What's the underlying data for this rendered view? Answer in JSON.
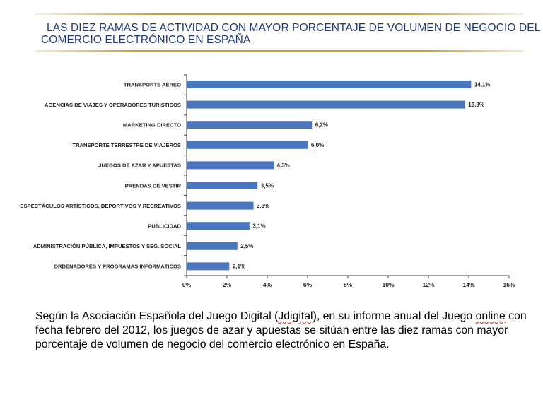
{
  "title": {
    "line1": "LAS DIEZ RAMAS DE ACTIVIDAD CON MAYOR PORCENTAJE DE VOLUMEN DE NEGOCIO DEL",
    "line2": "COMERCIO ELECTRÓNICO EN ESPAÑA"
  },
  "chart_data": {
    "type": "bar",
    "orientation": "horizontal",
    "categories": [
      "TRANSPORTE AÉREO",
      "AGENCIAS DE VIAJES Y OPERADORES TURÍSTICOS",
      "MARKETING DIRECTO",
      "TRANSPORTE TERRESTRE  DE VIAJEROS",
      "JUEGOS DE AZAR Y APUESTAS",
      "PRENDAS DE VESTIR",
      "ESPECTÁCULOS ARTÍSTICOS, DEPORTIVOS Y RECREATIVOS",
      "PUBLICIDAD",
      "ADMINISTRACIÓN PÚBLICA, IMPUESTOS Y SEG. SOCIAL",
      "ORDENADORES Y PROGRAMAS INFORMÁTICOS"
    ],
    "values": [
      14.1,
      13.8,
      6.2,
      6.0,
      4.3,
      3.5,
      3.3,
      3.1,
      2.5,
      2.1
    ],
    "data_labels": [
      "14,1%",
      "13,8%",
      "6,2%",
      "6,0%",
      "4,3%",
      "3,5%",
      "3,3%",
      "3,1%",
      "2,5%",
      "2,1%"
    ],
    "x_ticks": [
      "0%",
      "2%",
      "4%",
      "6%",
      "8%",
      "10%",
      "12%",
      "14%",
      "16%"
    ],
    "xlim": [
      0,
      16
    ],
    "grid": false,
    "bar_color": "#4a76bd"
  },
  "caption": {
    "p1": "Según la Asociación Española del Juego Digital (",
    "jdigital": "Jdigital",
    "p2": "), en su informe anual del Juego ",
    "online": "online",
    "p3": " con fecha febrero del 2012, los juegos de azar y apuestas se sitúan entre las diez ramas con mayor porcentaje de volumen de negocio del comercio electrónico en España."
  },
  "colors": {
    "title": "#1f3b78",
    "rule": "#c8a030",
    "bar": "#4a76bd",
    "axis": "#404040"
  }
}
